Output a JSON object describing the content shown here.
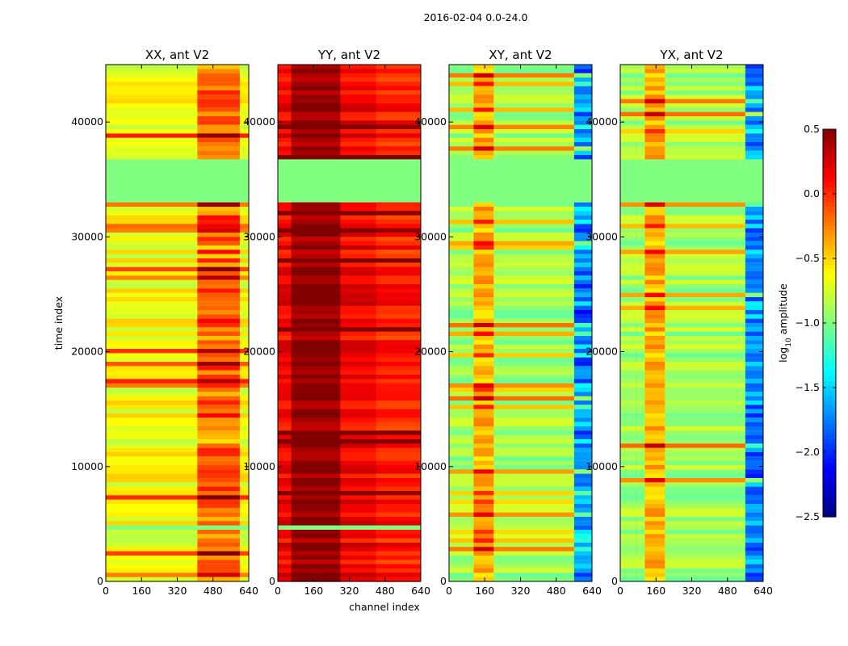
{
  "figure": {
    "suptitle": "2016-02-04 0.0-24.0",
    "xlabel": "channel index",
    "ylabel": "time index",
    "colorbar_label": "log",
    "colorbar_label_sub": "10",
    "colorbar_label_rest": " amplitude"
  },
  "chart_data": [
    {
      "type": "heatmap",
      "title": "XX, ant V2",
      "xlabel": "",
      "ylabel": "time index",
      "xlim": [
        0,
        640
      ],
      "ylim": [
        0,
        45000
      ],
      "xticks": [
        "0",
        "160",
        "320",
        "480",
        "640"
      ],
      "yticks": [
        "0",
        "10000",
        "20000",
        "30000",
        "40000"
      ],
      "base_level": -0.65,
      "flagged_time_ranges": [
        [
          33000,
          36900
        ],
        [
          4600,
          4900
        ]
      ]
    },
    {
      "type": "heatmap",
      "title": "YY, ant V2",
      "xlabel": "channel index",
      "ylabel": "",
      "xlim": [
        0,
        640
      ],
      "ylim": [
        0,
        45000
      ],
      "xticks": [
        "0",
        "160",
        "320",
        "480",
        "640"
      ],
      "yticks": [
        "0",
        "10000",
        "20000",
        "30000",
        "40000"
      ],
      "base_level": 0.15,
      "flagged_time_ranges": [
        [
          33000,
          36900
        ],
        [
          4600,
          4900
        ]
      ]
    },
    {
      "type": "heatmap",
      "title": "XY, ant V2",
      "xlabel": "",
      "ylabel": "",
      "xlim": [
        0,
        640
      ],
      "ylim": [
        0,
        45000
      ],
      "xticks": [
        "0",
        "160",
        "320",
        "480",
        "640"
      ],
      "yticks": [
        "0",
        "10000",
        "20000",
        "30000",
        "40000"
      ],
      "base_level": -0.9,
      "flagged_time_ranges": [
        [
          33000,
          36900
        ]
      ]
    },
    {
      "type": "heatmap",
      "title": "YX, ant V2",
      "xlabel": "",
      "ylabel": "",
      "xlim": [
        0,
        640
      ],
      "ylim": [
        0,
        45000
      ],
      "xticks": [
        "0",
        "160",
        "320",
        "480",
        "640"
      ],
      "yticks": [
        "0",
        "10000",
        "20000",
        "30000",
        "40000"
      ],
      "base_level": -0.9,
      "flagged_time_ranges": [
        [
          33000,
          36900
        ]
      ]
    }
  ],
  "colorbar": {
    "colormap": "jet",
    "range": [
      -2.5,
      0.5
    ],
    "ticks": [
      "0.5",
      "0.0",
      "−0.5",
      "−1.0",
      "−1.5",
      "−2.0",
      "−2.5"
    ],
    "tick_values": [
      0.5,
      0.0,
      -0.5,
      -1.0,
      -1.5,
      -2.0,
      -2.5
    ]
  }
}
